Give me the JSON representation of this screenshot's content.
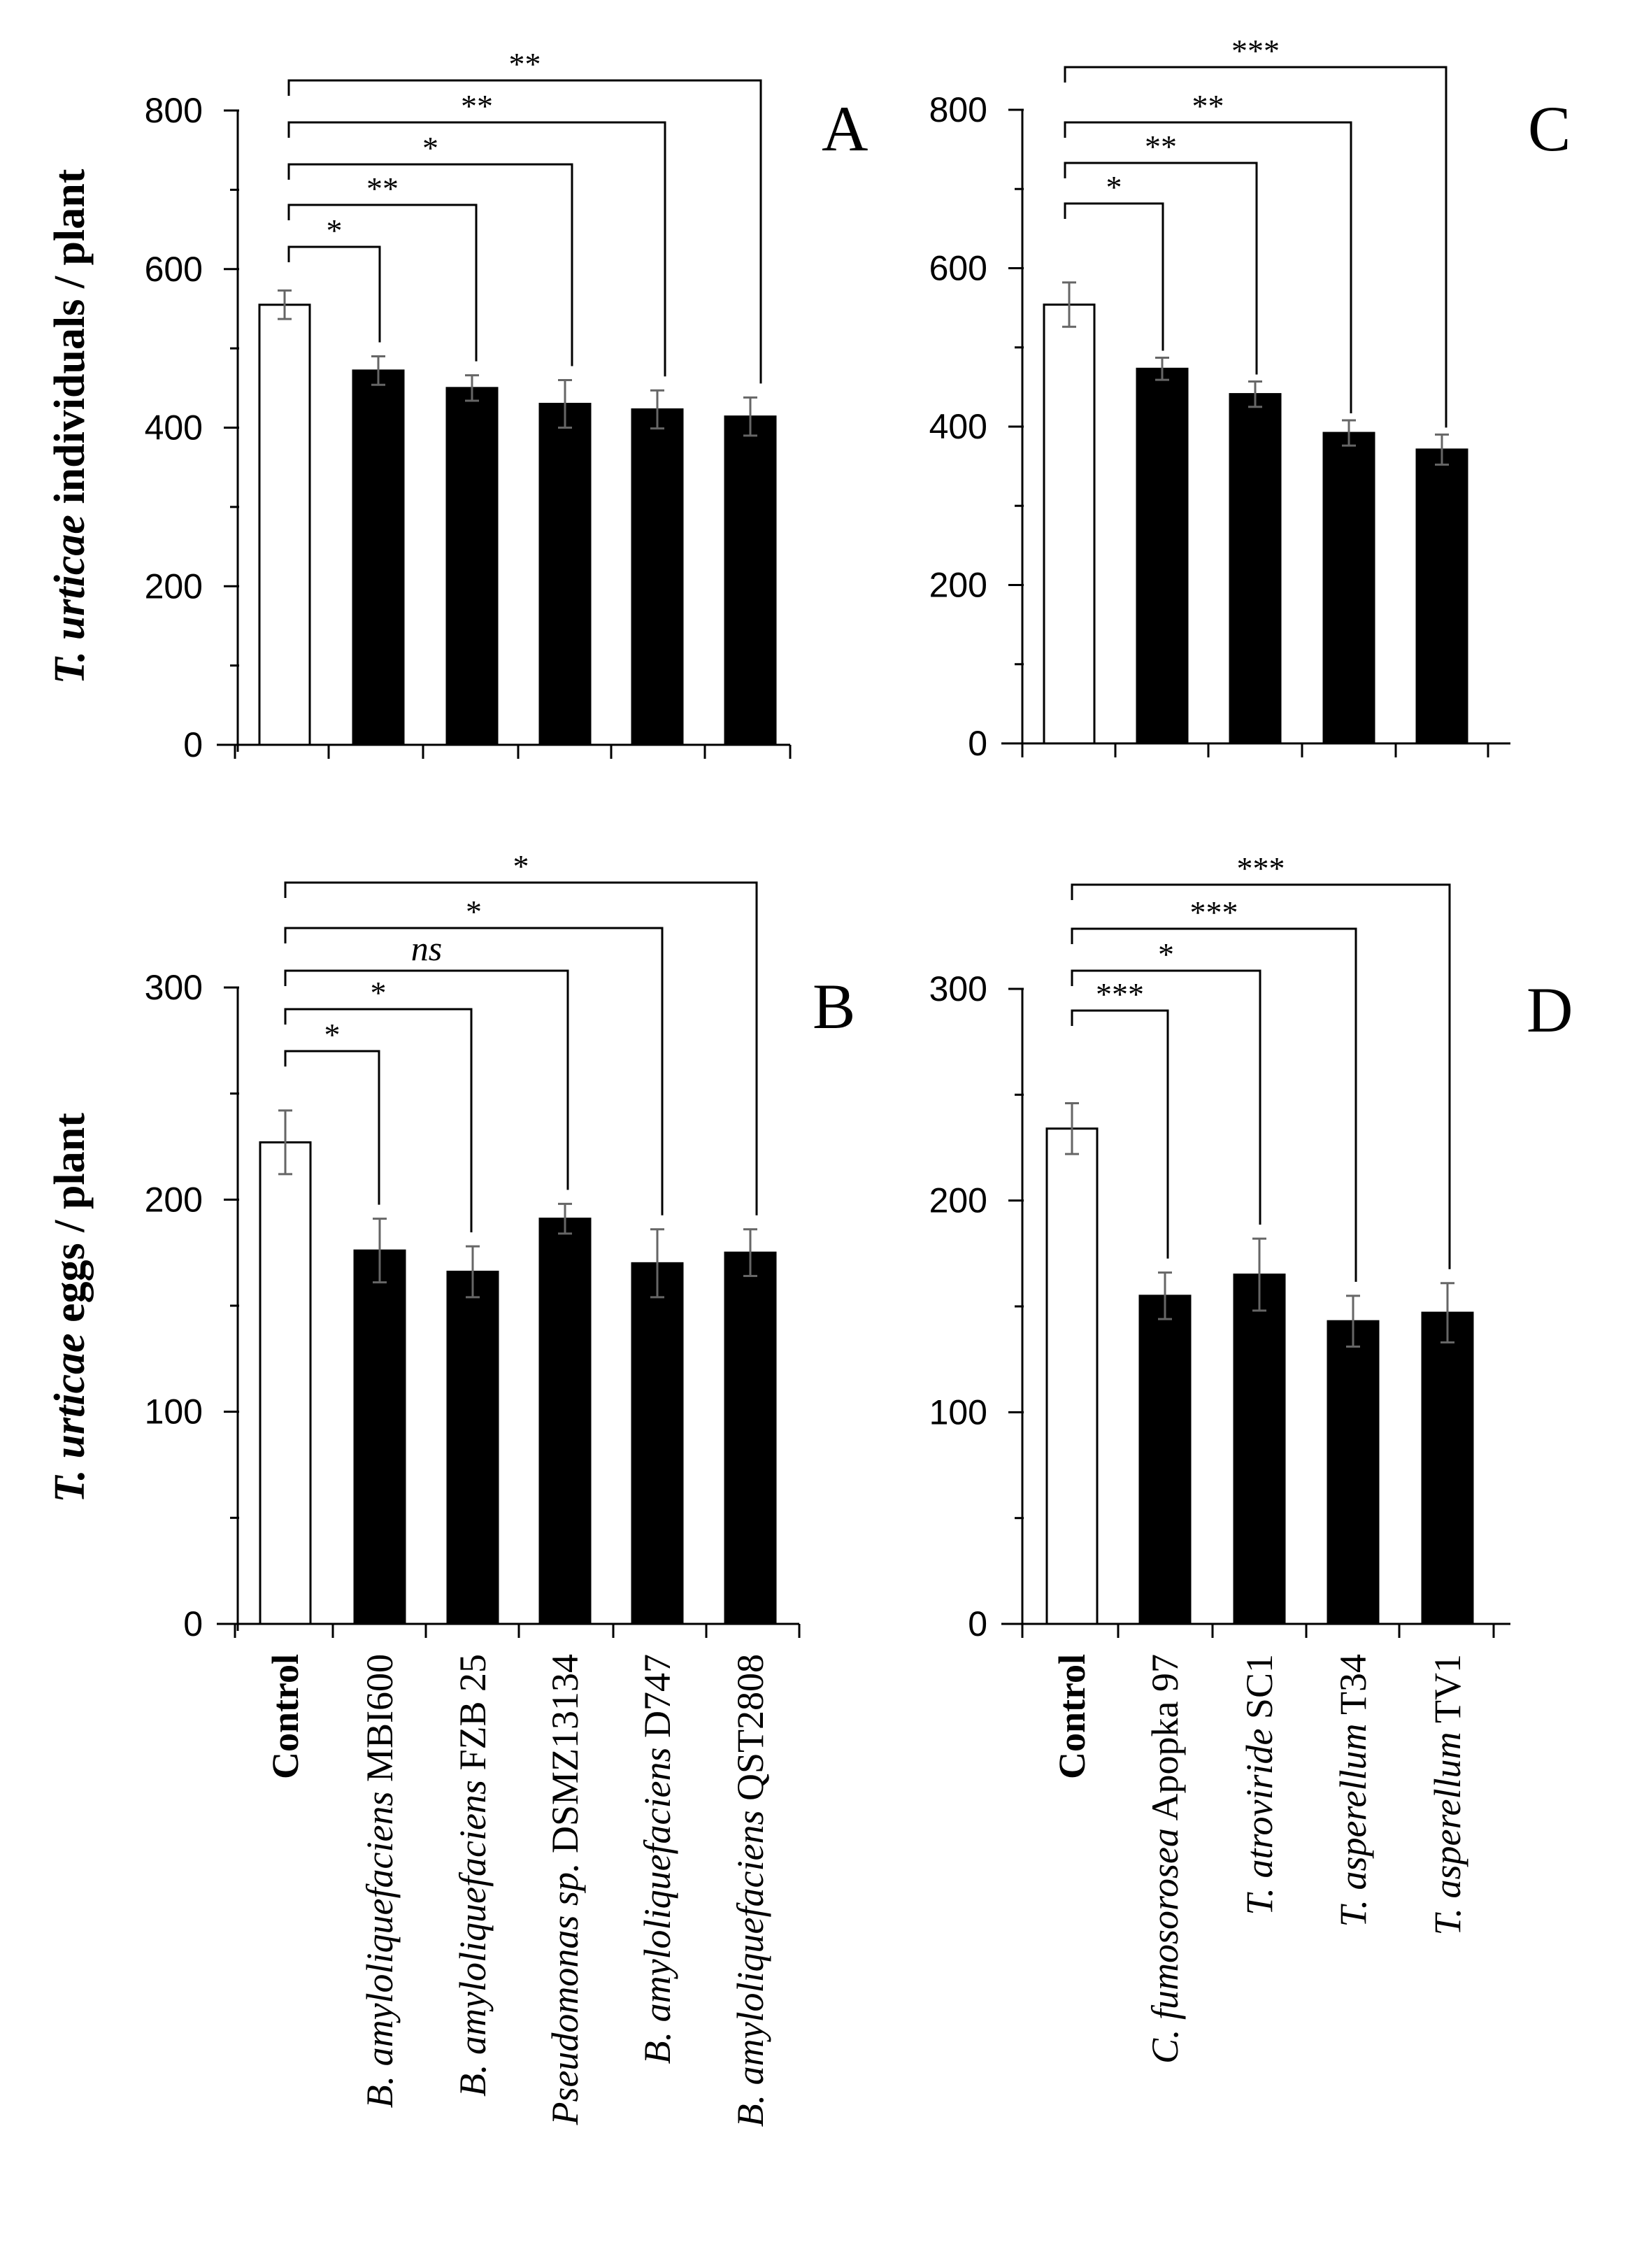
{
  "figure": {
    "y_labels": [
      {
        "italic": "T. urticae",
        "rest": " individuals / plant"
      },
      {
        "italic": "T. urticae",
        "rest": " eggs / plant"
      }
    ],
    "x_categories_left": [
      {
        "italic": "",
        "normal": "Control",
        "bold": true
      },
      {
        "italic": "B. amyloliquefaciens",
        "normal": " MBI600",
        "bold": false
      },
      {
        "italic": "B. amyloliquefaciens",
        "normal": " FZB 25",
        "bold": false
      },
      {
        "italic": "Pseudomonas sp.",
        "normal": "  DSMZ13134",
        "bold": false
      },
      {
        "italic": "B. amyloliquefaciens",
        "normal": " D747",
        "bold": false
      },
      {
        "italic": "B. amyloliquefaciens",
        "normal": " QST2808",
        "bold": false
      }
    ],
    "x_categories_right": [
      {
        "italic": "",
        "normal": "Control",
        "bold": true
      },
      {
        "italic": "C. fumosorosea",
        "normal": "  Apopka 97",
        "bold": false
      },
      {
        "italic": "T. atroviride",
        "normal": " SC1",
        "bold": false
      },
      {
        "italic": "T. asperellum",
        "normal": "  T34",
        "bold": false
      },
      {
        "italic": "T. asperellum",
        "normal": " TV1",
        "bold": false
      }
    ]
  },
  "chart_data": [
    {
      "panel": "A",
      "type": "bar",
      "ylim": [
        0,
        800
      ],
      "yticks": [
        0,
        200,
        400,
        600,
        800
      ],
      "categories": [
        "Control",
        "B. amyloliquefaciens MBI600",
        "B. amyloliquefaciens FZB 25",
        "Pseudomonas sp. DSMZ13134",
        "B. amyloliquefaciens D747",
        "B. amyloliquefaciens QST2808"
      ],
      "values": [
        555,
        472,
        450,
        430,
        423,
        414
      ],
      "errors": [
        18,
        18,
        16,
        30,
        24,
        24
      ],
      "fills": [
        "#ffffff",
        "#000000",
        "#000000",
        "#000000",
        "#000000",
        "#000000"
      ],
      "significance": [
        "*",
        "**",
        "*",
        "**",
        "**"
      ]
    },
    {
      "panel": "B",
      "type": "bar",
      "ylim": [
        0,
        300
      ],
      "yticks": [
        0,
        100,
        200,
        300
      ],
      "categories": [
        "Control",
        "B. amyloliquefaciens MBI600",
        "B. amyloliquefaciens FZB 25",
        "Pseudomonas sp. DSMZ13134",
        "B. amyloliquefaciens D747",
        "B. amyloliquefaciens QST2808"
      ],
      "values": [
        227,
        176,
        166,
        191,
        170,
        175
      ],
      "errors": [
        15,
        15,
        12,
        7,
        16,
        11
      ],
      "fills": [
        "#ffffff",
        "#000000",
        "#000000",
        "#000000",
        "#000000",
        "#000000"
      ],
      "significance": [
        "*",
        "*",
        "ns",
        "*",
        "*"
      ]
    },
    {
      "panel": "C",
      "type": "bar",
      "ylim": [
        0,
        800
      ],
      "yticks": [
        0,
        200,
        400,
        600,
        800
      ],
      "categories": [
        "Control",
        "C. fumosorosea Apopka 97",
        "T. atroviride SC1",
        "T. asperellum T34",
        "T. asperellum TV1"
      ],
      "values": [
        554,
        473,
        441,
        392,
        371
      ],
      "errors": [
        28,
        14,
        16,
        16,
        19
      ],
      "fills": [
        "#ffffff",
        "#000000",
        "#000000",
        "#000000",
        "#000000"
      ],
      "significance": [
        "*",
        "**",
        "**",
        "***"
      ]
    },
    {
      "panel": "D",
      "type": "bar",
      "ylim": [
        0,
        300
      ],
      "yticks": [
        0,
        100,
        200,
        300
      ],
      "categories": [
        "Control",
        "C. fumosorosea Apopka 97",
        "T. atroviride SC1",
        "T. asperellum T34",
        "T. asperellum TV1"
      ],
      "values": [
        234,
        155,
        165,
        143,
        147
      ],
      "errors": [
        12,
        11,
        17,
        12,
        14
      ],
      "fills": [
        "#ffffff",
        "#000000",
        "#000000",
        "#000000",
        "#000000"
      ],
      "significance": [
        "***",
        "*",
        "***",
        "***"
      ]
    }
  ]
}
